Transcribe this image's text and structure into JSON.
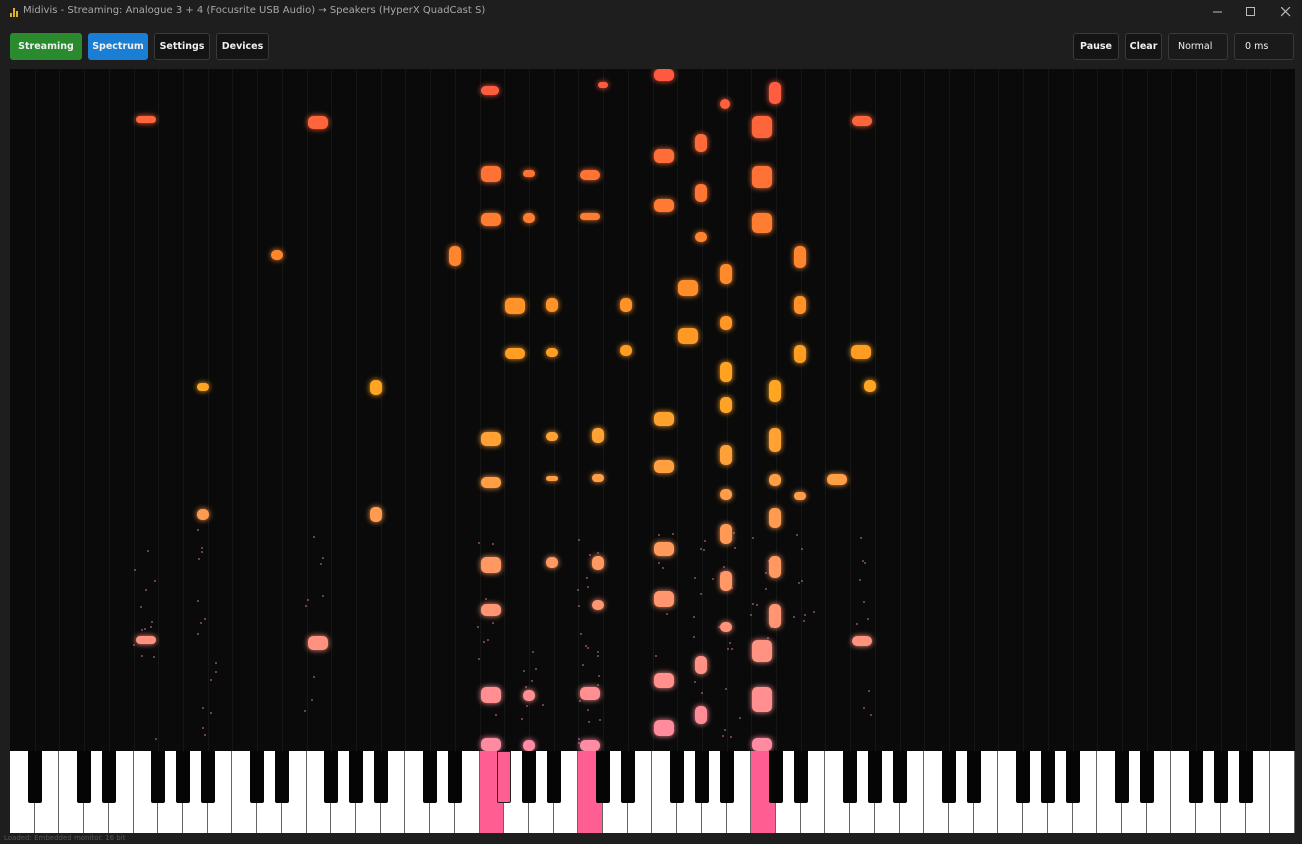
{
  "window": {
    "title": "Midivis - Streaming: Analogue 3 + 4 (Focusrite USB Audio) → Speakers (HyperX QuadCast S)",
    "controls": [
      "minimize",
      "maximize",
      "close"
    ]
  },
  "toolbar": {
    "left": [
      {
        "name": "streaming-button",
        "label": "Streaming",
        "style": "green"
      },
      {
        "name": "spectrum-button",
        "label": "Spectrum",
        "style": "blue"
      },
      {
        "name": "settings-button",
        "label": "Settings",
        "style": "dark"
      },
      {
        "name": "devices-button",
        "label": "Devices",
        "style": "dark"
      }
    ],
    "right": [
      {
        "name": "pause-button",
        "label": "Pause",
        "style": "dark"
      },
      {
        "name": "clear-button",
        "label": "Clear",
        "style": "dark"
      },
      {
        "name": "speed-select",
        "label": "Normal",
        "style": "light"
      },
      {
        "name": "latency-field",
        "label": "0 ms",
        "style": "light"
      }
    ]
  },
  "visualizer": {
    "active_keys": [
      {
        "type": "white",
        "index": 19
      },
      {
        "type": "black",
        "index": 20
      },
      {
        "type": "white",
        "index": 23
      },
      {
        "type": "white",
        "index": 30
      }
    ],
    "colors": {
      "note_top": "#ff5a40",
      "note_mid": "#ffa520",
      "note_bottom": "#ff8aa8",
      "active_key": "#ff5e93"
    }
  },
  "status": {
    "text": "Loaded: Embedded monitor. 16 bit"
  }
}
